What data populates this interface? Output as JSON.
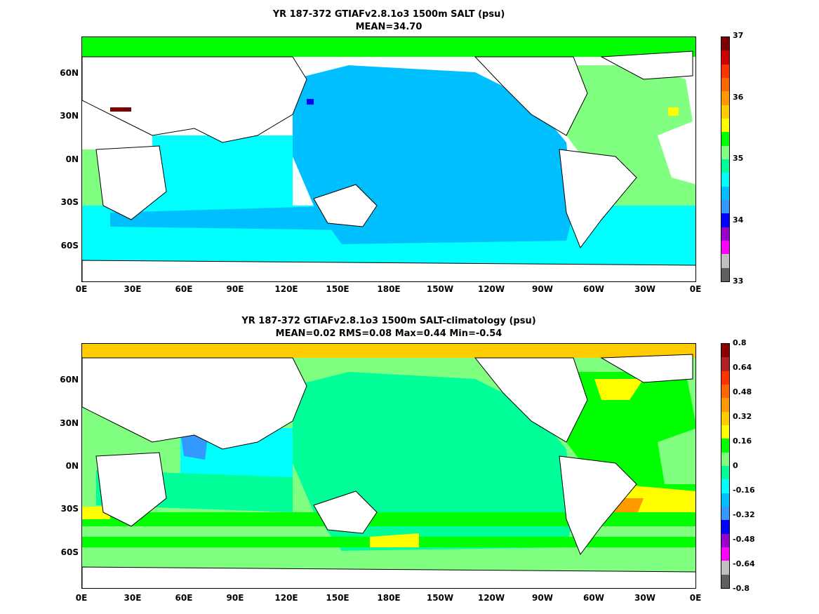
{
  "top": {
    "title_line1": "YR 187-372 GTIAFv2.8.1o3 1500m SALT (psu)",
    "title_line2": "MEAN=34.70",
    "y_ticks": [
      "60N",
      "30N",
      "0N",
      "30S",
      "60S"
    ],
    "x_ticks": [
      "0E",
      "30E",
      "60E",
      "90E",
      "120E",
      "150E",
      "180E",
      "150W",
      "120W",
      "90W",
      "60W",
      "30W",
      "0E"
    ],
    "colorbar_labels": [
      "37",
      "36",
      "35",
      "34",
      "33"
    ],
    "colorbar_colors": [
      "#7f0000",
      "#cc0000",
      "#ff3300",
      "#ff6600",
      "#ff9900",
      "#ffcc00",
      "#ffff00",
      "#00ff00",
      "#80ff80",
      "#00ff99",
      "#00ffff",
      "#00bfff",
      "#3399ff",
      "#0000ff",
      "#9900cc",
      "#ff00ff",
      "#c0c0c0",
      "#606060"
    ]
  },
  "bottom": {
    "title_line1": "YR 187-372 GTIAFv2.8.1o3 1500m SALT-climatology (psu)",
    "title_line2": "MEAN=0.02   RMS=0.08   Max=0.44   Min=-0.54",
    "y_ticks": [
      "60N",
      "30N",
      "0N",
      "30S",
      "60S"
    ],
    "x_ticks": [
      "0E",
      "30E",
      "60E",
      "90E",
      "120E",
      "150E",
      "180E",
      "150W",
      "120W",
      "90W",
      "60W",
      "30W",
      "0E"
    ],
    "colorbar_labels": [
      "0.8",
      "0.64",
      "0.48",
      "0.32",
      "0.16",
      "0",
      "-0.16",
      "-0.32",
      "-0.48",
      "-0.64",
      "-0.8"
    ],
    "colorbar_colors": [
      "#8b0000",
      "#b22222",
      "#ff3300",
      "#ff6600",
      "#ff9900",
      "#ffcc00",
      "#ffff00",
      "#00ff00",
      "#80ff80",
      "#00ff99",
      "#00ffff",
      "#00bfff",
      "#3399ff",
      "#0000ff",
      "#9900cc",
      "#ff00ff",
      "#c0c0c0",
      "#606060"
    ]
  }
}
